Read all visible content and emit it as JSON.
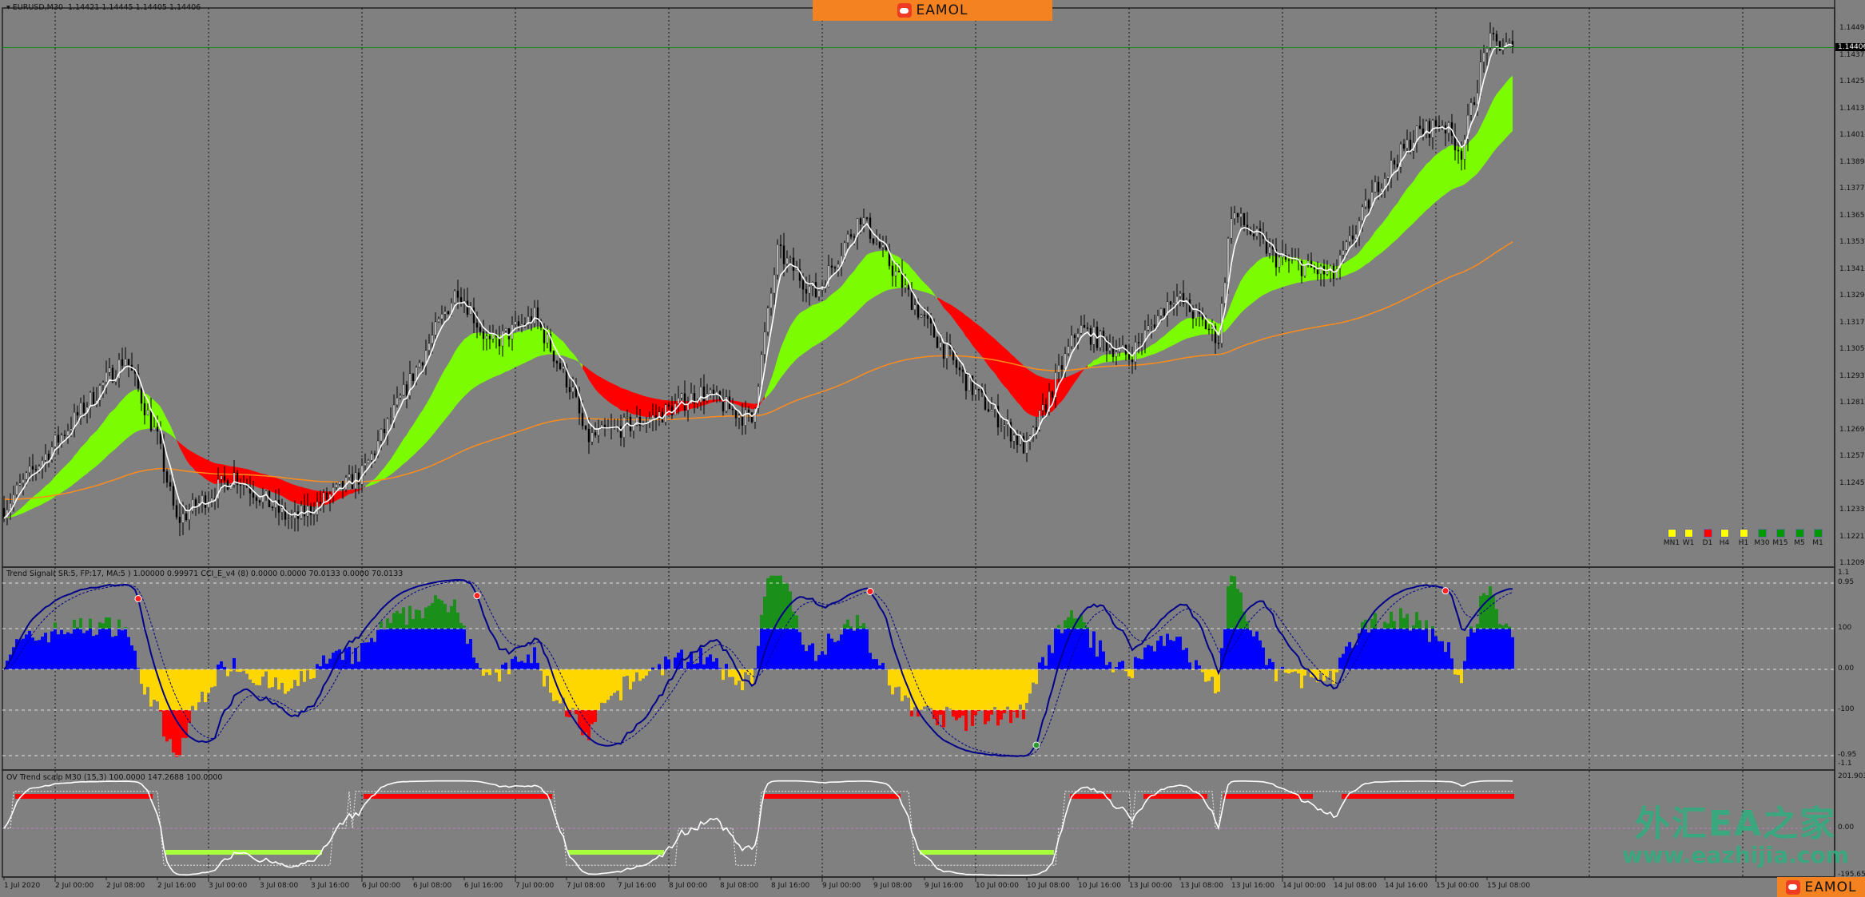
{
  "window": {
    "symbol_title": "EURUSD,M30",
    "ohlc": "1.14421 1.14445 1.14405 1.14406",
    "current_price": "1.14406"
  },
  "banner": {
    "brand": "EAMOL"
  },
  "watermark": {
    "line1": "外汇EA之家",
    "line2": "www.eazhijia.com"
  },
  "price_axis": [
    "1.14490",
    "1.14370",
    "1.14250",
    "1.14130",
    "1.14010",
    "1.13890",
    "1.13770",
    "1.13650",
    "1.13530",
    "1.13410",
    "1.13290",
    "1.13170",
    "1.13050",
    "1.12930",
    "1.12810",
    "1.12690",
    "1.12570",
    "1.12450",
    "1.12330",
    "1.12210",
    "1.12090"
  ],
  "timeframes": [
    {
      "label": "MN1",
      "color": "#ffff00"
    },
    {
      "label": "W1",
      "color": "#ffff00"
    },
    {
      "label": "D1",
      "color": "#ff0000"
    },
    {
      "label": "H4",
      "color": "#ffff00"
    },
    {
      "label": "H1",
      "color": "#ffff00"
    },
    {
      "label": "M30",
      "color": "#009a00"
    },
    {
      "label": "M15",
      "color": "#009a00"
    },
    {
      "label": "M5",
      "color": "#009a00"
    },
    {
      "label": "M1",
      "color": "#009a00"
    }
  ],
  "indicator1": {
    "header": "Trend Signal( SR:5, FP:17, MA:5 ) 1.00000 0.99971   CCI_E_v4 (8) 0.0000 0.0000 70.0133 0.0000 70.0133",
    "axis": [
      "1.1",
      "0.95",
      "100",
      "0.00",
      "-100",
      "-0.95",
      "-1.1"
    ]
  },
  "indicator2": {
    "header": "OV Trend scalp M30 (15,3) 100.0000 147.2688 100.0000",
    "axis": [
      "201.9034",
      "0.00",
      "-195.655"
    ]
  },
  "time_axis": [
    "1 Jul 2020",
    "2 Jul 00:00",
    "2 Jul 08:00",
    "2 Jul 16:00",
    "3 Jul 00:00",
    "3 Jul 08:00",
    "3 Jul 16:00",
    "6 Jul 00:00",
    "6 Jul 08:00",
    "6 Jul 16:00",
    "7 Jul 00:00",
    "7 Jul 08:00",
    "7 Jul 16:00",
    "8 Jul 00:00",
    "8 Jul 08:00",
    "8 Jul 16:00",
    "9 Jul 00:00",
    "9 Jul 08:00",
    "9 Jul 16:00",
    "10 Jul 00:00",
    "10 Jul 08:00",
    "10 Jul 16:00",
    "13 Jul 00:00",
    "13 Jul 08:00",
    "13 Jul 16:00",
    "14 Jul 00:00",
    "14 Jul 08:00",
    "14 Jul 16:00",
    "15 Jul 00:00",
    "15 Jul 08:00"
  ],
  "colors": {
    "background": "#808080",
    "ribbon_up": "#7cfc00",
    "ribbon_down": "#ff0000",
    "slow_ma": "#ff8c1a",
    "fast_ma": "#ffffff",
    "hist_pos": "#0000ff",
    "hist_pos_ext": "#1a8f1a",
    "hist_neg": "#ffd700",
    "hist_neg_ext": "#ff0000",
    "signal_line": "#00008b",
    "price_line": "#1f8a1f"
  },
  "chart_data": {
    "type": "candlestick",
    "symbol": "EURUSD",
    "timeframe": "M30",
    "ylim": [
      1.1209,
      1.1449
    ],
    "approx_close_path": [
      [
        "2020-07-01 16:00",
        1.1234
      ],
      [
        "2020-07-01 20:00",
        1.1249
      ],
      [
        "2020-07-02 11:00",
        1.1302
      ],
      [
        "2020-07-02 16:00",
        1.1265
      ],
      [
        "2020-07-02 19:00",
        1.1228
      ],
      [
        "2020-07-03 04:00",
        1.1249
      ],
      [
        "2020-07-03 13:00",
        1.1228
      ],
      [
        "2020-07-06 00:00",
        1.1249
      ],
      [
        "2020-07-06 15:00",
        1.1333
      ],
      [
        "2020-07-06 20:00",
        1.1307
      ],
      [
        "2020-07-07 03:00",
        1.132
      ],
      [
        "2020-07-07 09:00",
        1.1286
      ],
      [
        "2020-07-07 11:00",
        1.1265
      ],
      [
        "2020-07-07 22:00",
        1.1275
      ],
      [
        "2020-07-08 05:00",
        1.1286
      ],
      [
        "2020-07-08 13:00",
        1.1273
      ],
      [
        "2020-07-08 17:00",
        1.1349
      ],
      [
        "2020-07-08 23:00",
        1.133
      ],
      [
        "2020-07-09 06:00",
        1.1365
      ],
      [
        "2020-07-09 10:00",
        1.1346
      ],
      [
        "2020-07-09 16:00",
        1.1318
      ],
      [
        "2020-07-09 23:00",
        1.1289
      ],
      [
        "2020-07-10 08:00",
        1.126
      ],
      [
        "2020-07-10 16:00",
        1.1315
      ],
      [
        "2020-07-13 00:00",
        1.1302
      ],
      [
        "2020-07-13 07:00",
        1.133
      ],
      [
        "2020-07-13 14:00",
        1.131
      ],
      [
        "2020-07-13 16:00",
        1.1367
      ],
      [
        "2020-07-13 23:00",
        1.1346
      ],
      [
        "2020-07-14 08:00",
        1.1338
      ],
      [
        "2020-07-14 15:00",
        1.138
      ],
      [
        "2020-07-14 21:00",
        1.1402
      ],
      [
        "2020-07-15 01:00",
        1.1407
      ],
      [
        "2020-07-15 04:00",
        1.1394
      ],
      [
        "2020-07-15 08:00",
        1.1443
      ],
      [
        "2020-07-15 12:00",
        1.14406
      ]
    ]
  }
}
